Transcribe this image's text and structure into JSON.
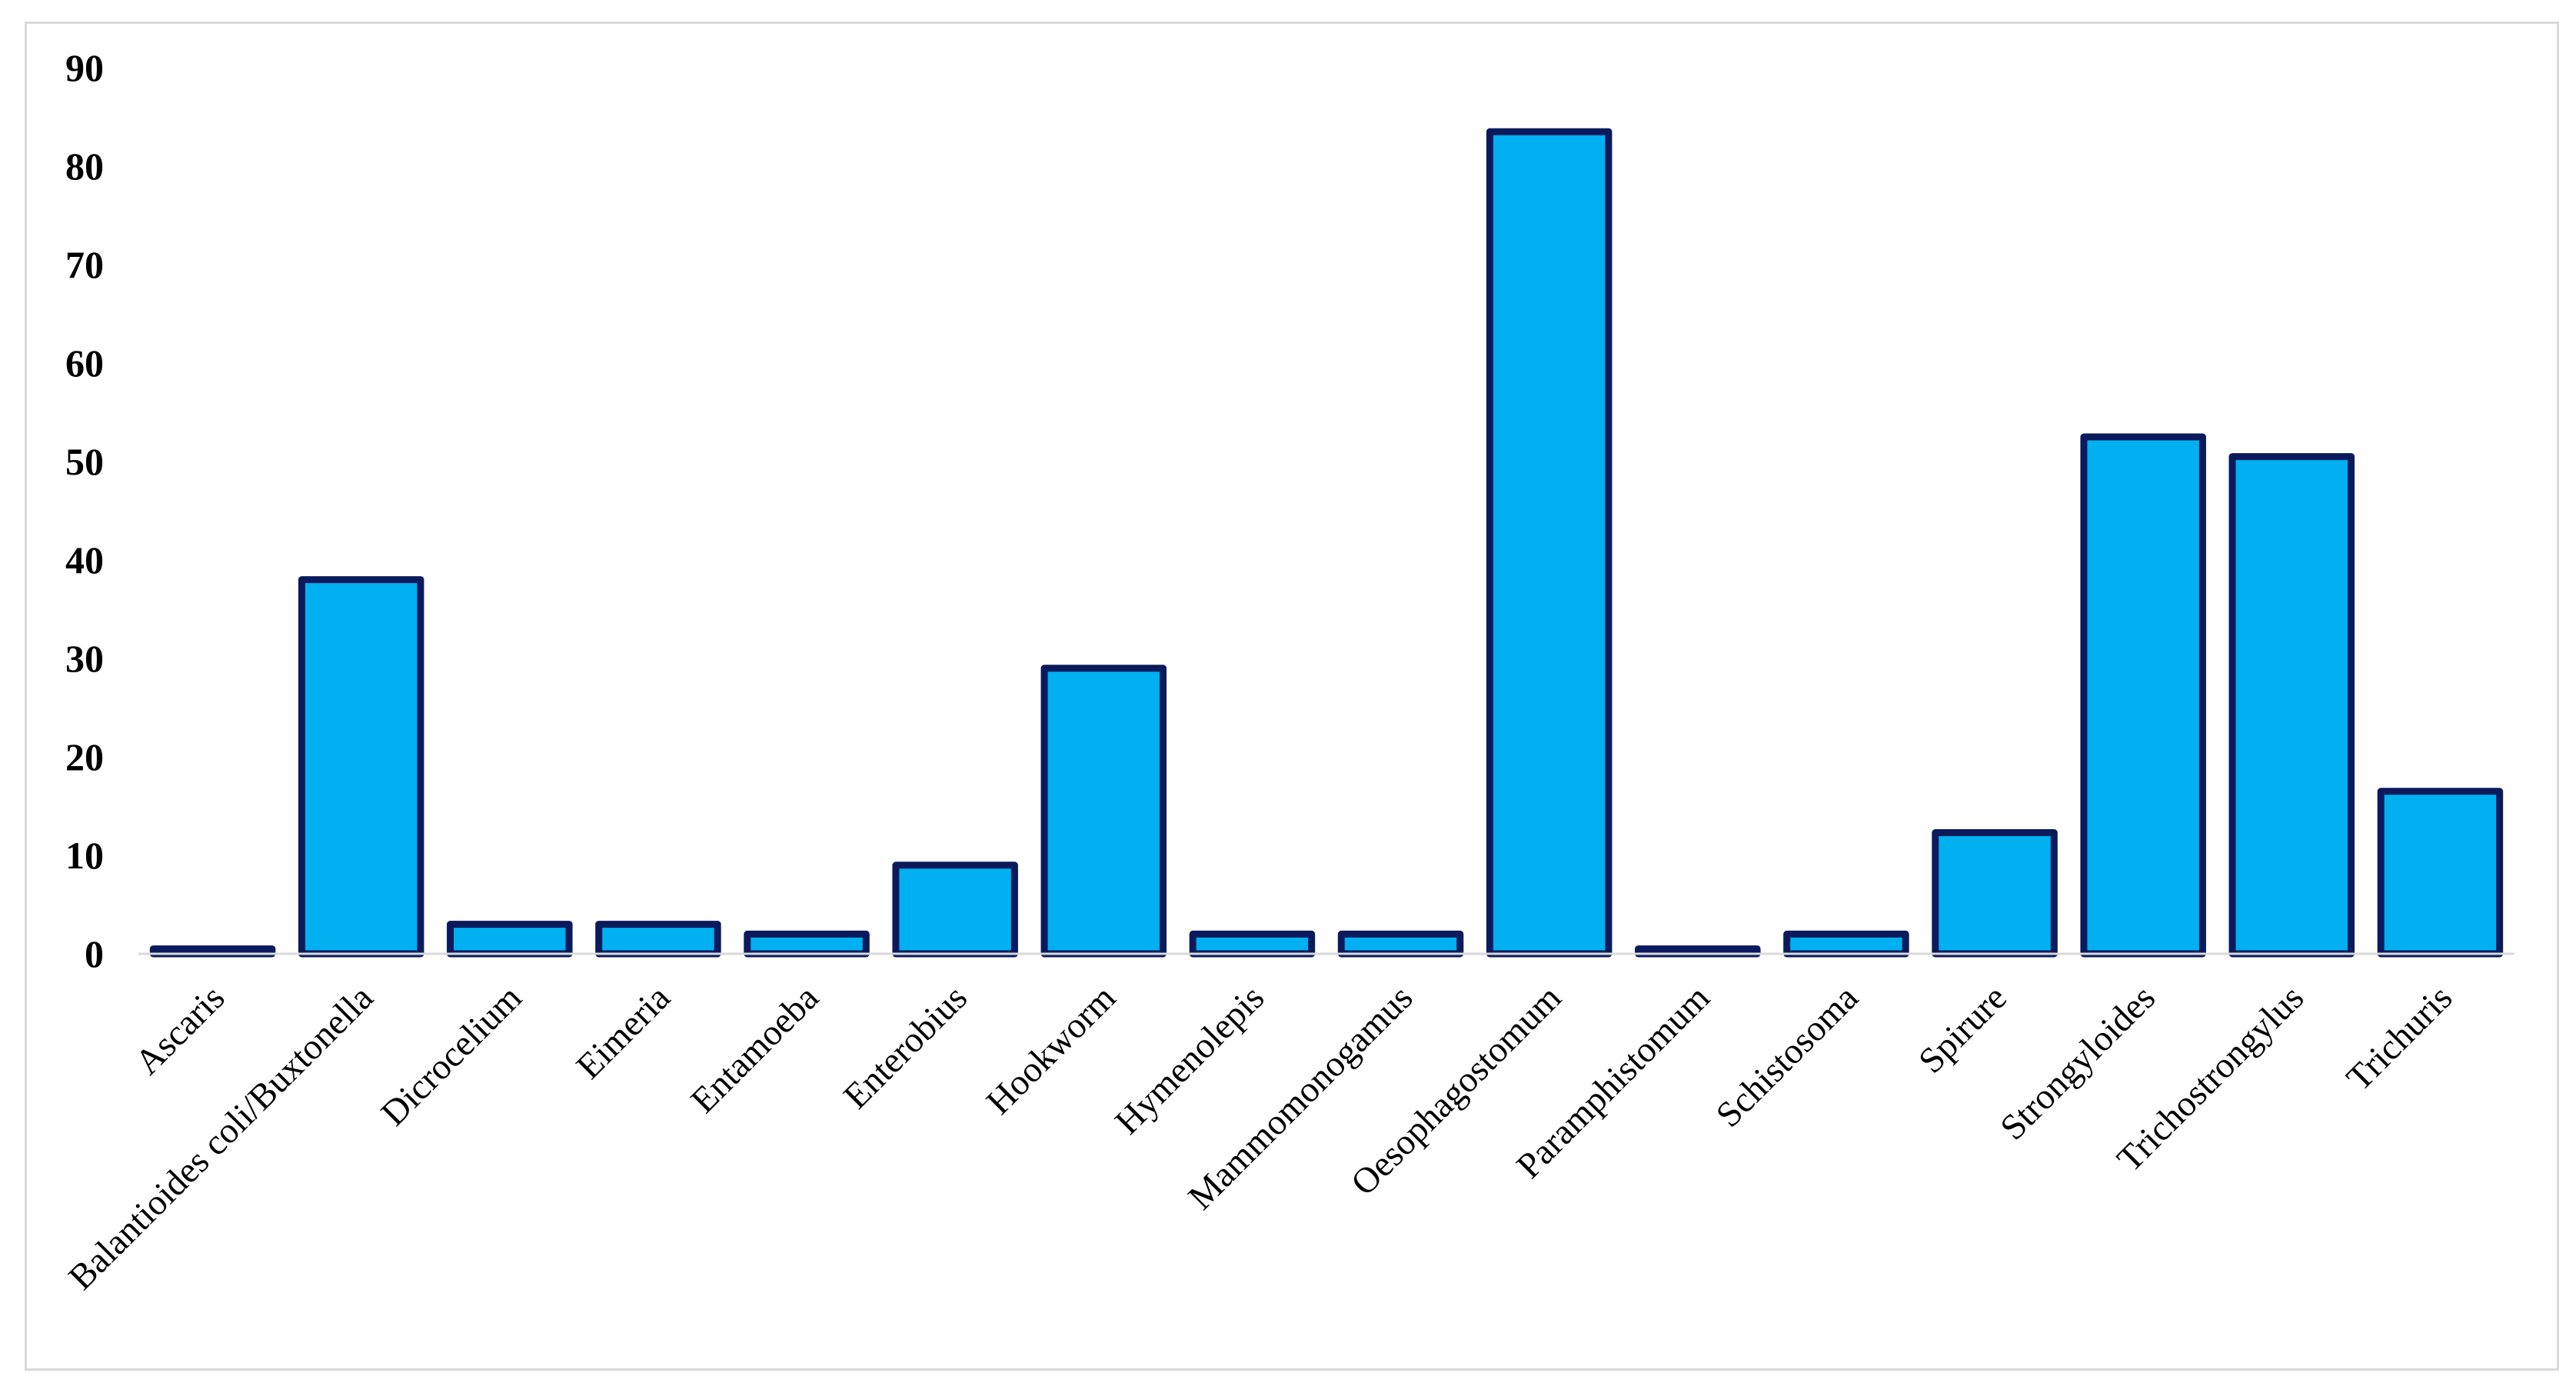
{
  "chart_data": {
    "type": "bar",
    "title": "",
    "xlabel": "",
    "ylabel": "",
    "ylim": [
      0,
      90
    ],
    "yticks": [
      0,
      10,
      20,
      30,
      40,
      50,
      60,
      70,
      80,
      90
    ],
    "grid": false,
    "legend": "none",
    "categories": [
      "Ascaris",
      "Balantioides coli/Buxtonella",
      "Dicrocelium",
      "Eimeria",
      "Entamoeba",
      "Enterobius",
      "Hookworm",
      "Hymenolepis",
      "Mammomonogamus",
      "Oesophagostomum",
      "Paramphistomum",
      "Schistosoma",
      "Spirure",
      "Strongyloides",
      "Trichostrongylus",
      "Trichuris"
    ],
    "values": [
      0.5,
      38,
      3,
      3,
      2,
      9,
      29,
      2,
      2,
      83.5,
      0.5,
      2,
      12.3,
      52.5,
      50.5,
      16.5
    ],
    "colors": {
      "bar_fill": "#00b0f0",
      "bar_border": "#0a1a5c",
      "axis": "#d9d9d9",
      "frame": "#d9d9d9",
      "text": "#000000"
    }
  }
}
